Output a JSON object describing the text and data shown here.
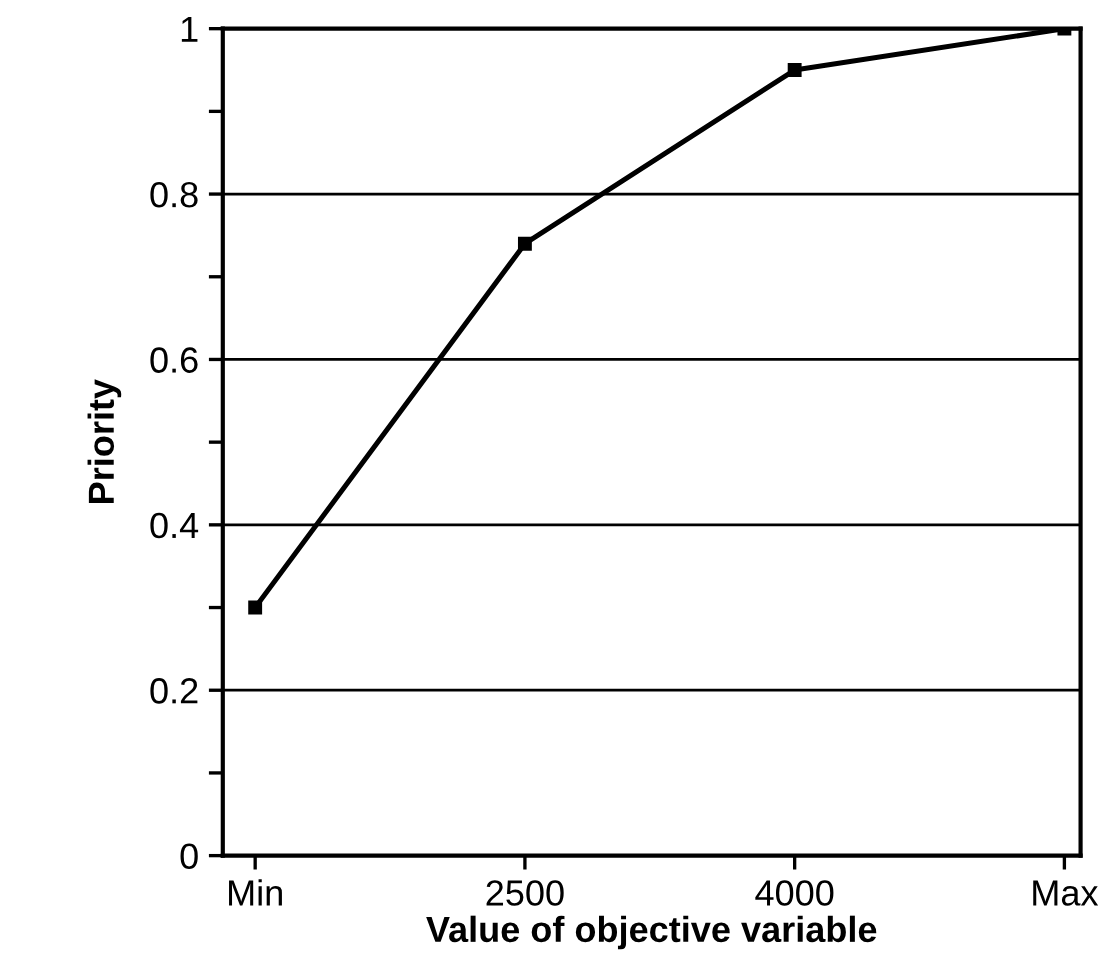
{
  "chart_data": {
    "type": "line",
    "xlabel": "Value of objective variable",
    "ylabel": "Priority",
    "categories": [
      "Min",
      "2500",
      "4000",
      "Max"
    ],
    "values": [
      0.3,
      0.74,
      0.95,
      1.0
    ],
    "color": "#000000",
    "marker": "square",
    "line_style": "solid",
    "ylim": [
      0,
      1
    ],
    "yticks": [
      0,
      {
        "value": 0.1,
        "label": null
      },
      0.2,
      {
        "value": 0.3,
        "label": null
      },
      0.4,
      {
        "value": 0.5,
        "label": null
      },
      0.6,
      {
        "value": 0.7,
        "label": null
      },
      0.8,
      {
        "value": 0.9,
        "label": null
      },
      1
    ],
    "grid": "y"
  }
}
